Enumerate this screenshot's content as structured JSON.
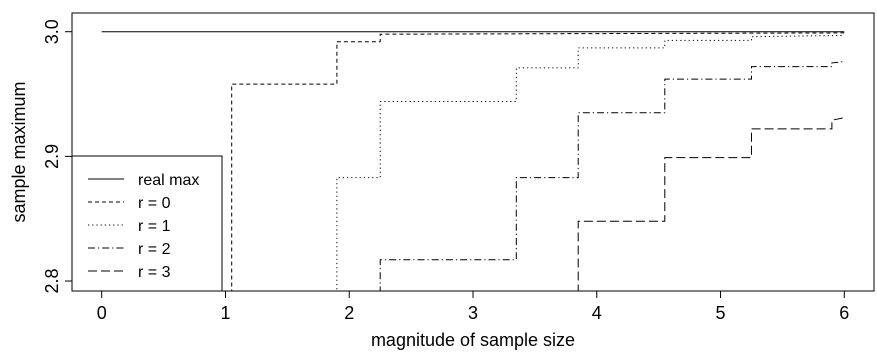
{
  "chart_data": {
    "type": "line",
    "title": "",
    "xlabel": "magnitude of sample size",
    "ylabel": "sample maximum",
    "xlim": [
      -0.24,
      6.24
    ],
    "ylim": [
      2.792,
      3.015
    ],
    "x_ticks": [
      "0",
      "1",
      "2",
      "3",
      "4",
      "5",
      "6"
    ],
    "y_ticks": [
      "2.8",
      "2.9",
      "3.0"
    ],
    "legend_position": "bottom-left",
    "series": [
      {
        "name": "real max",
        "style": "solid",
        "points": [
          [
            0,
            3.0
          ],
          [
            6,
            3.0
          ]
        ]
      },
      {
        "name": "r = 0",
        "style": "dashed-short",
        "points": [
          [
            1.05,
            2.79
          ],
          [
            1.05,
            2.958
          ],
          [
            1.9,
            2.958
          ],
          [
            1.9,
            2.992
          ],
          [
            2.25,
            2.992
          ],
          [
            2.25,
            2.998
          ],
          [
            6,
            2.999
          ]
        ]
      },
      {
        "name": "r = 1",
        "style": "dotted",
        "points": [
          [
            1.9,
            2.79
          ],
          [
            1.9,
            2.883
          ],
          [
            2.25,
            2.883
          ],
          [
            2.25,
            2.944
          ],
          [
            3.35,
            2.944
          ],
          [
            3.35,
            2.971
          ],
          [
            3.85,
            2.971
          ],
          [
            3.85,
            2.987
          ],
          [
            4.55,
            2.987
          ],
          [
            4.55,
            2.993
          ],
          [
            5.25,
            2.993
          ],
          [
            5.25,
            2.996
          ],
          [
            6,
            2.997
          ]
        ]
      },
      {
        "name": "r = 2",
        "style": "dash-dot",
        "points": [
          [
            2.25,
            2.79
          ],
          [
            2.25,
            2.817
          ],
          [
            3.35,
            2.817
          ],
          [
            3.35,
            2.883
          ],
          [
            3.85,
            2.883
          ],
          [
            3.85,
            2.935
          ],
          [
            4.55,
            2.935
          ],
          [
            4.55,
            2.962
          ],
          [
            5.25,
            2.962
          ],
          [
            5.25,
            2.972
          ],
          [
            5.9,
            2.972
          ],
          [
            5.9,
            2.975
          ],
          [
            6,
            2.976
          ]
        ]
      },
      {
        "name": "r = 3",
        "style": "dashed-long",
        "points": [
          [
            3.85,
            2.79
          ],
          [
            3.85,
            2.848
          ],
          [
            4.55,
            2.848
          ],
          [
            4.55,
            2.899
          ],
          [
            5.25,
            2.899
          ],
          [
            5.25,
            2.922
          ],
          [
            5.9,
            2.922
          ],
          [
            5.9,
            2.929
          ],
          [
            6,
            2.931
          ]
        ]
      }
    ]
  }
}
